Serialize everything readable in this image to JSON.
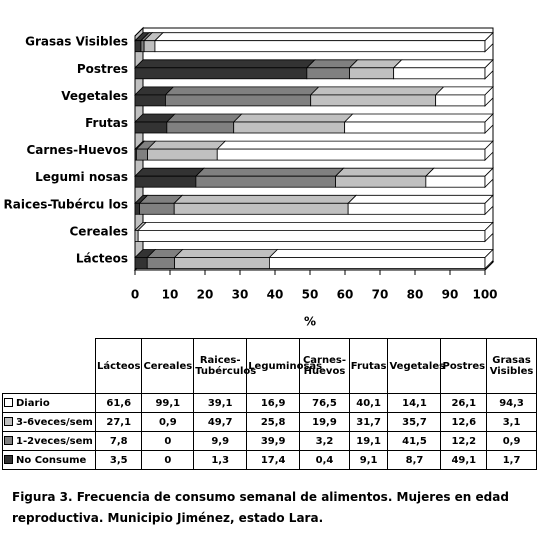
{
  "chart_data": {
    "type": "stacked-bar-3d",
    "categories": [
      "Lácteos",
      "Cereales",
      "Raices-Tubércu los",
      "Legumi nosas",
      "Carnes-Huevos",
      "Frutas",
      "Vegetales",
      "Postres",
      "Grasas Visibles"
    ],
    "table_categories": [
      "Lácteos",
      "Cereales",
      "Raices-Tubérculos",
      "Leguminosas",
      "Carnes-Huevos",
      "Frutas",
      "Vegetales",
      "Postres",
      "Grasas Visibles"
    ],
    "series": [
      {
        "name": "Diario",
        "color": "#ffffff",
        "values": [
          61.6,
          99.1,
          39.1,
          16.9,
          76.5,
          40.1,
          14.1,
          26.1,
          94.3
        ],
        "value_labels": [
          "61,6",
          "99,1",
          "39,1",
          "16,9",
          "76,5",
          "40,1",
          "14,1",
          "26,1",
          "94,3"
        ]
      },
      {
        "name": "3-6veces/sem",
        "color": "#c0c0c0",
        "values": [
          27.1,
          0.9,
          49.7,
          25.8,
          19.9,
          31.7,
          35.7,
          12.6,
          3.1
        ],
        "value_labels": [
          "27,1",
          "0,9",
          "49,7",
          "25,8",
          "19,9",
          "31,7",
          "35,7",
          "12,6",
          "3,1"
        ]
      },
      {
        "name": "1-2veces/sem",
        "color": "#808080",
        "values": [
          7.8,
          0,
          9.9,
          39.9,
          3.2,
          19.1,
          41.5,
          12.2,
          0.9
        ],
        "value_labels": [
          "7,8",
          "0",
          "9,9",
          "39,9",
          "3,2",
          "19,1",
          "41,5",
          "12,2",
          "0,9"
        ]
      },
      {
        "name": "No Consume",
        "color": "#333333",
        "values": [
          3.5,
          0,
          1.3,
          17.4,
          0.4,
          9.1,
          8.7,
          49.1,
          1.7
        ],
        "value_labels": [
          "3,5",
          "0",
          "1,3",
          "17,4",
          "0,4",
          "9,1",
          "8,7",
          "49,1",
          "1,7"
        ]
      }
    ],
    "xlabel": "%",
    "xlim": [
      0,
      100
    ],
    "xticks": [
      0,
      10,
      20,
      30,
      40,
      50,
      60,
      70,
      80,
      90,
      100
    ],
    "caption": "Figura 3. Frecuencia de consumo semanal de alimentos. Mujeres en edad reproductiva. Municipio Jiménez, estado Lara."
  }
}
